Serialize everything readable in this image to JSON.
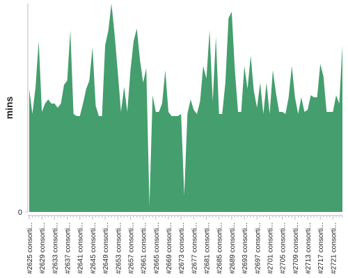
{
  "chart_data": {
    "type": "area",
    "y_label": "mins",
    "color": "#459e6e",
    "categories": [
      "#2625 consorti...",
      null,
      null,
      null,
      "#2629 consorti...",
      null,
      null,
      null,
      "#2633 consorti...",
      null,
      null,
      null,
      "#2637 consorti...",
      null,
      null,
      null,
      "#2641 consorti...",
      null,
      null,
      null,
      "#2645 consorti...",
      null,
      null,
      null,
      "#2649 consorti...",
      null,
      null,
      null,
      "#2653 consorti...",
      null,
      null,
      null,
      "#2657 consorti...",
      null,
      null,
      null,
      "#2661 consorti...",
      null,
      null,
      null,
      "#2665 consorti...",
      null,
      null,
      null,
      "#2669 consorti...",
      null,
      null,
      null,
      "#2673 consorti...",
      null,
      null,
      null,
      "#2677 consorti...",
      null,
      null,
      null,
      "#2681 consorti...",
      null,
      null,
      null,
      "#2685 consorti...",
      null,
      null,
      null,
      "#2689 consorti...",
      null,
      null,
      null,
      "#2693 consorti...",
      null,
      null,
      null,
      "#2697 consorti...",
      null,
      null,
      null,
      "#2701 consorti...",
      null,
      null,
      null,
      "#2705 consorti...",
      null,
      null,
      null,
      "#2709 consorti...",
      null,
      null,
      null,
      "#2713 consorti...",
      null,
      null,
      null,
      "#2717 consorti...",
      null,
      null,
      null,
      "#2721 consorti...",
      null,
      null,
      null
    ],
    "values": [
      59,
      47,
      60,
      82,
      48,
      52,
      54,
      52,
      52,
      50,
      52,
      61,
      63,
      87,
      47,
      46,
      46,
      52,
      59,
      63,
      79,
      51,
      46,
      46,
      80,
      87,
      100,
      85,
      67,
      48,
      60,
      48,
      68,
      82,
      88,
      73,
      62,
      69,
      3,
      56,
      48,
      48,
      52,
      68,
      48,
      46,
      46,
      46,
      47,
      8,
      47,
      54,
      49,
      47,
      53,
      70,
      64,
      87,
      53,
      84,
      47,
      47,
      62,
      93,
      96,
      68,
      48,
      48,
      70,
      59,
      75,
      58,
      50,
      62,
      47,
      62,
      47,
      68,
      57,
      48,
      48,
      47,
      55,
      70,
      55,
      47,
      55,
      48,
      49,
      56,
      55,
      55,
      71,
      65,
      48,
      48,
      48,
      56,
      52,
      80
    ],
    "ylim": [
      0,
      100
    ],
    "yticks": [
      0
    ]
  }
}
